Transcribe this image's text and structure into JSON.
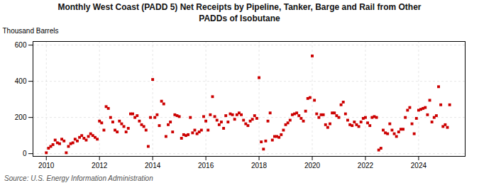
{
  "chart_data": {
    "type": "scatter",
    "title": "Monthly West Coast (PADD 5) Net Receipts by Pipeline, Tanker, Barge and Rail from Other\nPADDs of Isobutane",
    "ylabel": "Thousand Barrels",
    "source": "Source: U.S. Energy Information Administration",
    "color": "#cc0000",
    "marker": "square",
    "grid": true,
    "xlim": [
      2009.5,
      2025.75
    ],
    "ylim": [
      -15,
      620
    ],
    "xticks": [
      2010,
      2012,
      2014,
      2016,
      2018,
      2020,
      2022,
      2024
    ],
    "yticks": [
      0,
      200,
      400,
      600
    ],
    "x": [
      2010.0,
      2010.083,
      2010.167,
      2010.25,
      2010.333,
      2010.417,
      2010.5,
      2010.583,
      2010.667,
      2010.75,
      2010.833,
      2010.917,
      2011.0,
      2011.083,
      2011.167,
      2011.25,
      2011.333,
      2011.417,
      2011.5,
      2011.583,
      2011.667,
      2011.75,
      2011.833,
      2011.917,
      2012.0,
      2012.083,
      2012.167,
      2012.25,
      2012.333,
      2012.417,
      2012.5,
      2012.583,
      2012.667,
      2012.75,
      2012.833,
      2012.917,
      2013.0,
      2013.083,
      2013.167,
      2013.25,
      2013.333,
      2013.417,
      2013.5,
      2013.583,
      2013.667,
      2013.75,
      2013.833,
      2013.917,
      2014.0,
      2014.083,
      2014.167,
      2014.25,
      2014.333,
      2014.417,
      2014.5,
      2014.583,
      2014.667,
      2014.75,
      2014.833,
      2014.917,
      2015.0,
      2015.083,
      2015.167,
      2015.25,
      2015.333,
      2015.417,
      2015.5,
      2015.583,
      2015.667,
      2015.75,
      2015.833,
      2015.917,
      2016.0,
      2016.083,
      2016.167,
      2016.25,
      2016.333,
      2016.417,
      2016.5,
      2016.583,
      2016.667,
      2016.75,
      2016.833,
      2016.917,
      2017.0,
      2017.083,
      2017.167,
      2017.25,
      2017.333,
      2017.417,
      2017.5,
      2017.583,
      2017.667,
      2017.75,
      2017.833,
      2017.917,
      2018.0,
      2018.083,
      2018.167,
      2018.25,
      2018.333,
      2018.417,
      2018.5,
      2018.583,
      2018.667,
      2018.75,
      2018.833,
      2018.917,
      2019.0,
      2019.083,
      2019.167,
      2019.25,
      2019.333,
      2019.417,
      2019.5,
      2019.583,
      2019.667,
      2019.75,
      2019.833,
      2019.917,
      2020.0,
      2020.083,
      2020.167,
      2020.25,
      2020.333,
      2020.417,
      2020.5,
      2020.583,
      2020.667,
      2020.75,
      2020.833,
      2020.917,
      2021.0,
      2021.083,
      2021.167,
      2021.25,
      2021.333,
      2021.417,
      2021.5,
      2021.583,
      2021.667,
      2021.75,
      2021.833,
      2021.917,
      2022.0,
      2022.083,
      2022.167,
      2022.25,
      2022.333,
      2022.417,
      2022.5,
      2022.583,
      2022.667,
      2022.75,
      2022.833,
      2022.917,
      2023.0,
      2023.083,
      2023.167,
      2023.25,
      2023.333,
      2023.417,
      2023.5,
      2023.583,
      2023.667,
      2023.75,
      2023.833,
      2023.917,
      2024.0,
      2024.083,
      2024.167,
      2024.25,
      2024.333,
      2024.417,
      2024.5,
      2024.583,
      2024.667,
      2024.75,
      2024.833,
      2024.917,
      2025.0,
      2025.083,
      2025.167
    ],
    "values": [
      5,
      30,
      40,
      50,
      75,
      60,
      55,
      80,
      70,
      5,
      40,
      55,
      60,
      80,
      70,
      90,
      100,
      85,
      75,
      95,
      110,
      100,
      90,
      80,
      180,
      170,
      130,
      260,
      250,
      200,
      175,
      130,
      120,
      180,
      165,
      150,
      120,
      140,
      220,
      220,
      200,
      210,
      180,
      160,
      150,
      130,
      40,
      200,
      410,
      200,
      215,
      155,
      290,
      275,
      95,
      160,
      175,
      120,
      215,
      210,
      205,
      85,
      105,
      100,
      105,
      200,
      115,
      130,
      110,
      120,
      130,
      205,
      180,
      130,
      215,
      315,
      205,
      185,
      160,
      175,
      140,
      210,
      175,
      220,
      215,
      190,
      215,
      225,
      215,
      185,
      165,
      155,
      180,
      190,
      210,
      195,
      420,
      65,
      25,
      70,
      180,
      225,
      75,
      95,
      95,
      90,
      105,
      130,
      160,
      170,
      185,
      215,
      220,
      225,
      210,
      195,
      180,
      235,
      305,
      310,
      540,
      295,
      220,
      200,
      215,
      215,
      160,
      145,
      165,
      225,
      225,
      210,
      200,
      270,
      285,
      220,
      185,
      160,
      155,
      175,
      160,
      150,
      175,
      195,
      200,
      170,
      155,
      200,
      205,
      200,
      20,
      30,
      130,
      115,
      110,
      165,
      130,
      110,
      95,
      120,
      135,
      135,
      200,
      240,
      255,
      165,
      110,
      195,
      240,
      245,
      250,
      255,
      215,
      295,
      175,
      200,
      210,
      370,
      270,
      150,
      160,
      145,
      270
    ]
  }
}
